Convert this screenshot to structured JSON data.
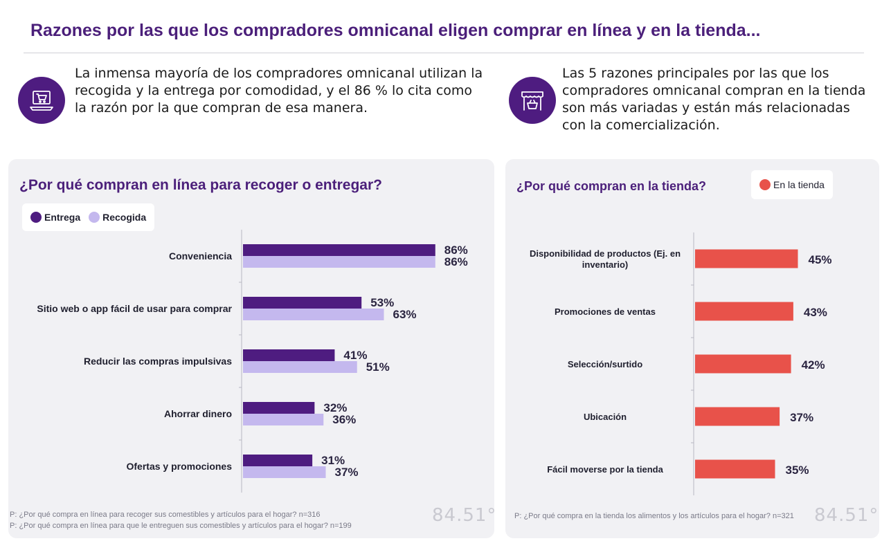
{
  "title": "Razones por las que los compradores omnicanal eligen comprar en línea y en la tienda...",
  "intro_left": {
    "icon": "laptop-cart-icon",
    "text": "La inmensa mayoría de los compradores omnicanal utilizan la recogida y la entrega por comodidad, y el 86 % lo cita como la razón por la que compran de esa manera."
  },
  "intro_right": {
    "icon": "storefront-basket-icon",
    "text": "Las 5 razones principales por las que los compradores omnicanal compran en la tienda son más variadas y están más relacionadas con la comercialización."
  },
  "colors": {
    "entrega": "#4e1c80",
    "recogida": "#c4b8ee",
    "tienda": "#e8524a",
    "brand_purple": "#4e1c80"
  },
  "brand": "84.51°",
  "chart_data": [
    {
      "type": "bar",
      "orientation": "horizontal",
      "title": "¿Por qué compran en línea para recoger o entregar?",
      "categories": [
        "Conveniencia",
        "Sitio web o app fácil de usar para comprar",
        "Reducir las compras impulsivas",
        "Ahorrar dinero",
        "Ofertas y promociones"
      ],
      "series": [
        {
          "name": "Entrega",
          "values": [
            86,
            53,
            41,
            32,
            31
          ],
          "labels": [
            "86%",
            "53%",
            "41%",
            "32%",
            "31%"
          ]
        },
        {
          "name": "Recogida",
          "values": [
            86,
            63,
            51,
            36,
            37
          ],
          "labels": [
            "86%",
            "63%",
            "51%",
            "36%",
            "37%"
          ]
        }
      ],
      "xlim": [
        0,
        100
      ],
      "legend": "top-left",
      "grid": false,
      "footnotes": [
        "P: ¿Por qué compra en línea para recoger sus comestibles y artículos para el hogar? n=316",
        "P: ¿Por qué compra en línea para que le entreguen sus comestibles y artículos para el hogar? n=199"
      ]
    },
    {
      "type": "bar",
      "orientation": "horizontal",
      "title": "¿Por qué compran en la tienda?",
      "categories": [
        "Disponibilidad de productos (Ej. en inventario)",
        "Promociones de ventas",
        "Selección/surtido",
        "Ubicación",
        "Fácil moverse por la tienda"
      ],
      "series": [
        {
          "name": "En la tienda",
          "values": [
            45,
            43,
            42,
            37,
            35
          ],
          "labels": [
            "45%",
            "43%",
            "42%",
            "37%",
            "35%"
          ]
        }
      ],
      "xlim": [
        0,
        100
      ],
      "legend": "top-right",
      "grid": false,
      "footnotes": [
        "P: ¿Por qué compra en la tienda los alimentos y los artículos para el hogar? n=321"
      ]
    }
  ]
}
